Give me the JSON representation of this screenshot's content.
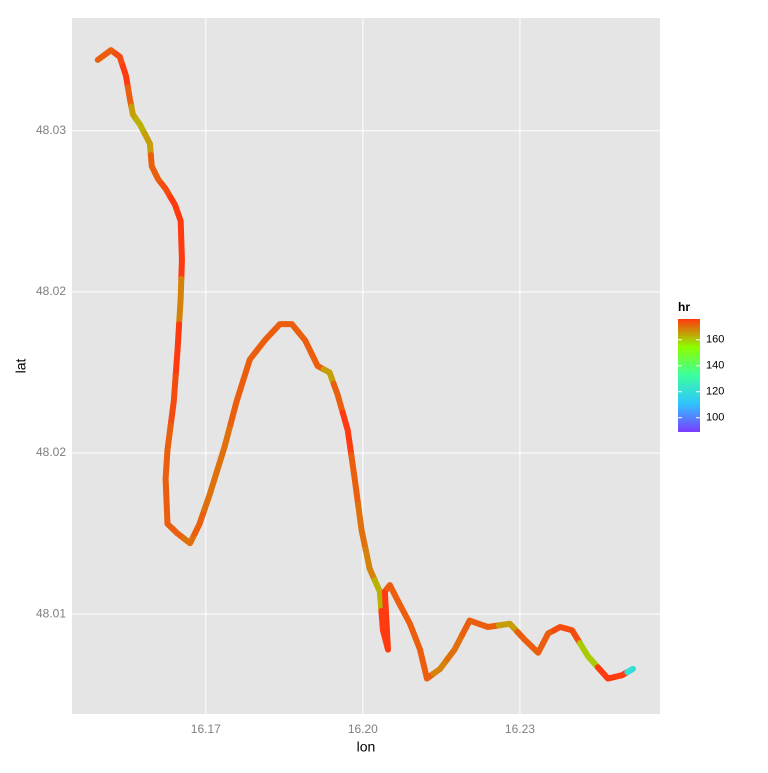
{
  "chart_data": {
    "type": "path",
    "x_label": "lon",
    "y_label": "lat",
    "color_label": "hr",
    "x": [
      16.1578,
      16.1599,
      16.1613,
      16.1623,
      16.1629,
      16.1634,
      16.1645,
      16.1661,
      16.1664,
      16.1674,
      16.1686,
      16.1701,
      16.171,
      16.1712,
      16.171,
      16.1705,
      16.1699,
      16.1689,
      16.1686,
      16.1689,
      16.1705,
      16.1725,
      16.174,
      16.1756,
      16.178,
      16.1799,
      16.182,
      16.1844,
      16.1868,
      16.1887,
      16.1908,
      16.1928,
      16.1947,
      16.196,
      16.1976,
      16.1987,
      16.1998,
      16.2011,
      16.2027,
      16.2032,
      16.204,
      16.2035,
      16.2043,
      16.2056,
      16.2075,
      16.2091,
      16.2102,
      16.2123,
      16.2146,
      16.217,
      16.2199,
      16.2234,
      16.2258,
      16.2279,
      16.2295,
      16.2314,
      16.2333,
      16.2358,
      16.239,
      16.2412,
      16.243
    ],
    "y": [
      48.0322,
      48.0325,
      48.0323,
      48.0317,
      48.031,
      48.0305,
      48.0302,
      48.0296,
      48.0289,
      48.0285,
      48.0282,
      48.0277,
      48.0272,
      48.026,
      48.0248,
      48.0232,
      48.0216,
      48.0201,
      48.0192,
      48.0178,
      48.0175,
      48.0172,
      48.0178,
      48.0187,
      48.0202,
      48.0216,
      48.0229,
      48.0235,
      48.024,
      48.024,
      48.0235,
      48.0227,
      48.0225,
      48.0218,
      48.0207,
      48.0192,
      48.0176,
      48.0164,
      48.0157,
      48.0145,
      48.0139,
      48.0157,
      48.0159,
      48.0154,
      48.0147,
      48.0139,
      48.013,
      48.0133,
      48.0139,
      48.0148,
      48.0146,
      48.0147,
      48.0142,
      48.0138,
      48.0144,
      48.0146,
      48.0145,
      48.0137,
      48.013,
      48.0131,
      48.0133
    ],
    "hr": [
      172,
      172,
      174,
      176,
      172,
      165,
      163,
      165,
      172,
      172,
      174,
      176,
      176,
      176,
      168,
      176,
      174,
      172,
      172,
      172,
      172,
      170,
      172,
      170,
      170,
      172,
      172,
      172,
      172,
      172,
      172,
      172,
      165,
      172,
      176,
      172,
      170,
      168,
      163,
      176,
      176,
      176,
      172,
      172,
      172,
      172,
      172,
      168,
      170,
      172,
      172,
      165,
      172,
      172,
      172,
      174,
      174,
      160,
      176,
      176,
      120
    ],
    "xlim": [
      16.1537,
      16.2473
    ],
    "ylim": [
      48.0119,
      48.0335
    ],
    "xticks": [
      {
        "value": 16.175,
        "label": "16.17"
      },
      {
        "value": 16.2,
        "label": "16.20"
      },
      {
        "value": 16.225,
        "label": "16.23"
      }
    ],
    "yticks": [
      48.03,
      {
        "value": 48.025,
        "label": "48.02"
      },
      48.02,
      {
        "value": 48.015,
        "label": "48.01"
      }
    ],
    "color_lim": [
      89,
      176
    ],
    "color_ticks": [
      100,
      120,
      140,
      160
    ],
    "colors": [
      "#7a3cff",
      "#2fc4ff",
      "#3affa0",
      "#8cff00",
      "#ff3a10"
    ],
    "grid": true
  }
}
